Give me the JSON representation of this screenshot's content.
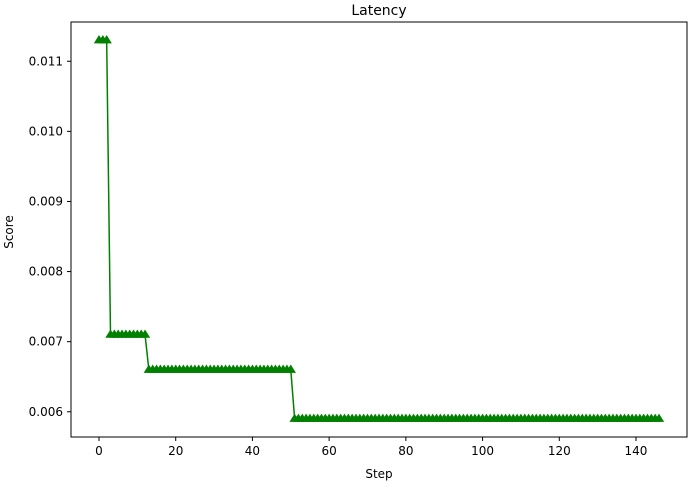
{
  "chart_data": {
    "type": "line",
    "title": "Latency",
    "xlabel": "Step",
    "ylabel": "Score",
    "xlim": [
      -7.3,
      153.3
    ],
    "ylim": [
      0.00564,
      0.01156
    ],
    "xticks": [
      0,
      20,
      40,
      60,
      80,
      100,
      120,
      140
    ],
    "xtick_labels": [
      "0",
      "20",
      "40",
      "60",
      "80",
      "100",
      "120",
      "140"
    ],
    "yticks": [
      0.006,
      0.007,
      0.008,
      0.009,
      0.01,
      0.011
    ],
    "ytick_labels": [
      "0.006",
      "0.007",
      "0.008",
      "0.009",
      "0.010",
      "0.011"
    ],
    "grid": false,
    "color": "#008000",
    "marker": "triangle-up",
    "segments": [
      {
        "x_start": 0,
        "x_end": 2,
        "value": 0.0113
      },
      {
        "x_start": 3,
        "x_end": 12,
        "value": 0.0071
      },
      {
        "x_start": 13,
        "x_end": 50,
        "value": 0.0066
      },
      {
        "x_start": 51,
        "x_end": 146,
        "value": 0.0059
      }
    ]
  }
}
